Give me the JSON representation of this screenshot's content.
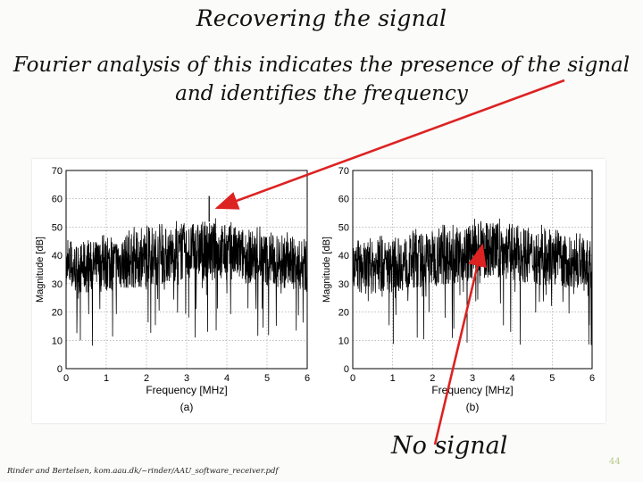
{
  "slide": {
    "title": "Recovering the signal",
    "subtitle_line1": "Fourier analysis of this indicates the presence of the signal",
    "subtitle_line2": "and identifies the frequency",
    "annotation": "No signal",
    "citation": "Rinder and Bertelsen, kom.aau.dk/~rinder/AAU_software_receiver.pdf",
    "page_number": "44",
    "colors": {
      "text": "#111111",
      "arrow": "#dd2222",
      "page_number": "#b9c98a",
      "spectrum": "#000000",
      "background": "#fbfbfa"
    }
  },
  "chart_data": [
    {
      "type": "line",
      "panel_label": "(a)",
      "xlabel": "Frequency [MHz]",
      "ylabel": "Magnitude [dB]",
      "xlim": [
        0,
        6
      ],
      "ylim": [
        0,
        70
      ],
      "xticks": [
        0,
        1,
        2,
        3,
        4,
        5,
        6
      ],
      "yticks": [
        0,
        10,
        20,
        30,
        40,
        50,
        60,
        70
      ],
      "grid": true,
      "noise_floor_envelope": {
        "x": [
          0,
          1,
          2,
          3,
          3.5,
          4,
          5,
          6
        ],
        "upper": [
          44,
          46,
          49,
          51,
          52,
          51,
          48,
          45
        ],
        "lower": [
          26,
          27,
          29,
          31,
          32,
          31,
          29,
          27
        ],
        "deep_dips_to": 8
      },
      "peak": {
        "x": 3.56,
        "y": 61
      }
    },
    {
      "type": "line",
      "panel_label": "(b)",
      "xlabel": "Frequency [MHz]",
      "ylabel": "Magnitude [dB]",
      "xlim": [
        0,
        6
      ],
      "ylim": [
        0,
        70
      ],
      "xticks": [
        0,
        1,
        2,
        3,
        4,
        5,
        6
      ],
      "yticks": [
        0,
        10,
        20,
        30,
        40,
        50,
        60,
        70
      ],
      "grid": true,
      "noise_floor_envelope": {
        "x": [
          0,
          1,
          2,
          3,
          3.5,
          4,
          5,
          6
        ],
        "upper": [
          44,
          46,
          49,
          51,
          52,
          51,
          48,
          45
        ],
        "lower": [
          26,
          27,
          29,
          31,
          32,
          31,
          29,
          27
        ],
        "deep_dips_to": 8
      },
      "peak": null
    }
  ]
}
